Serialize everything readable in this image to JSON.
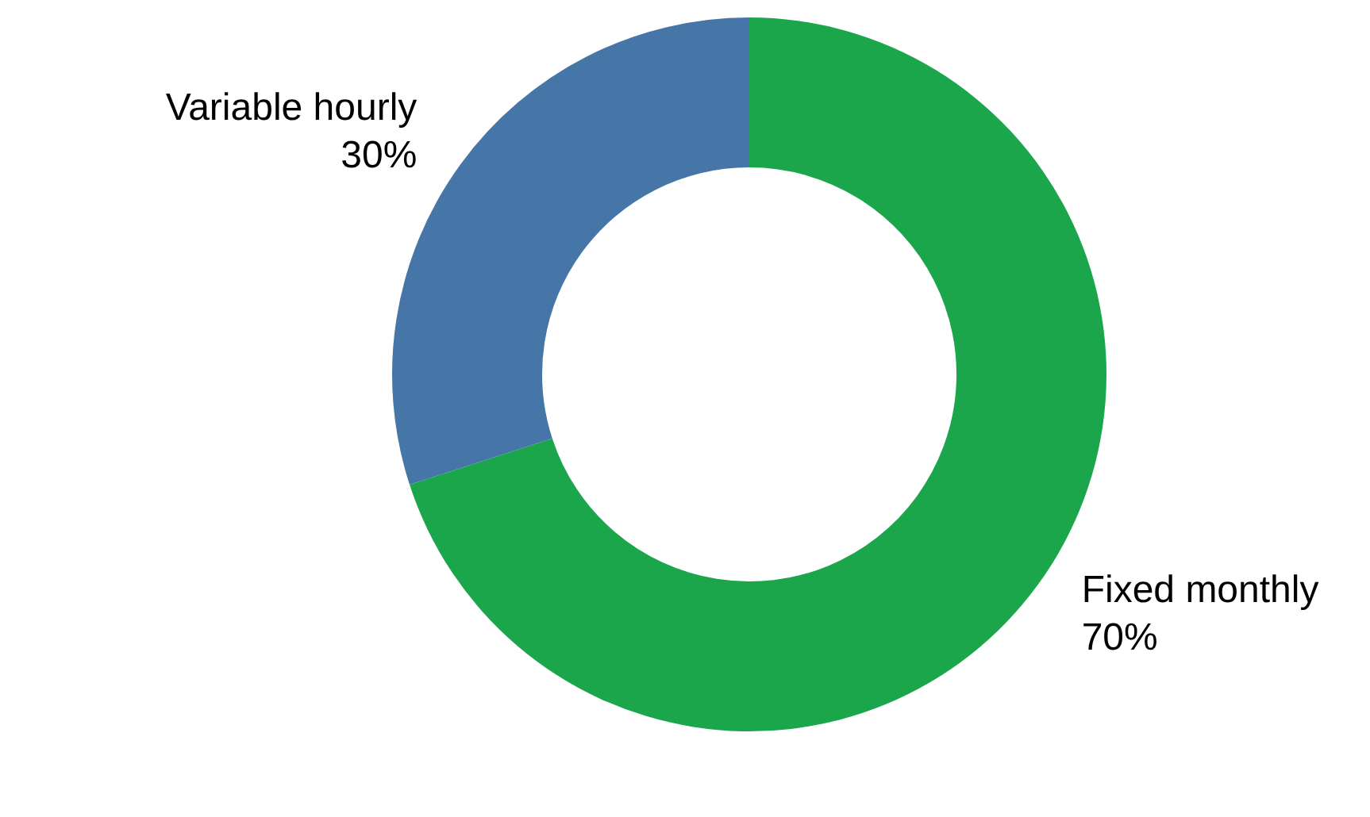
{
  "chart_data": {
    "type": "donut",
    "categories": [
      "Fixed monthly",
      "Variable hourly"
    ],
    "values": [
      70,
      30
    ],
    "colors": [
      "#1ca64c",
      "#4675a8"
    ],
    "value_labels": [
      "70%",
      "30%"
    ],
    "legend": false
  }
}
